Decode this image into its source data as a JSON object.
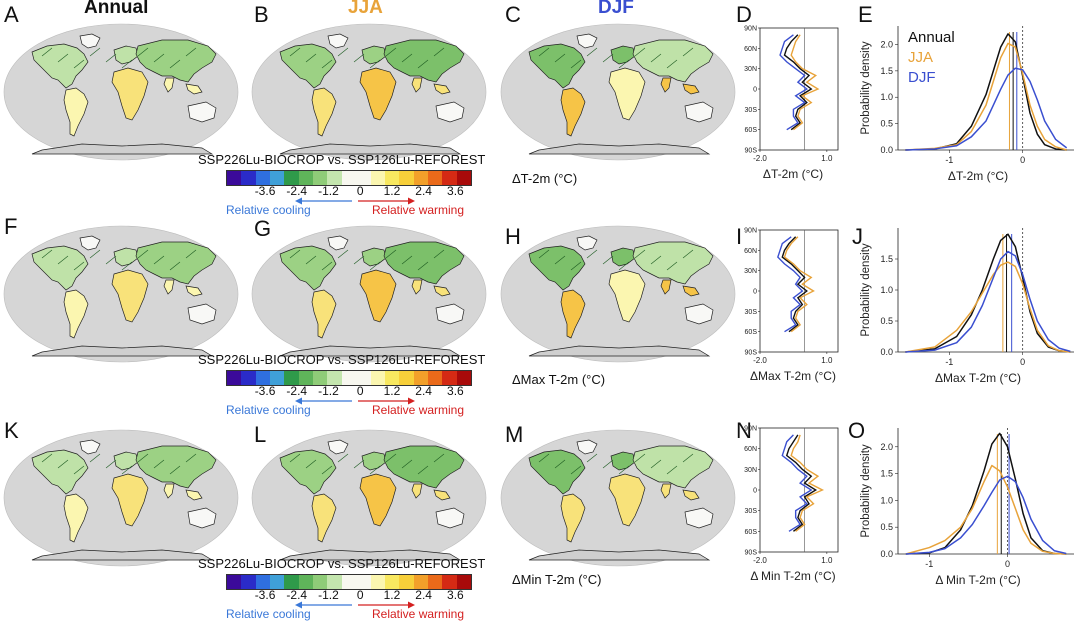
{
  "columns": {
    "annual": "Annual",
    "jja": "JJA",
    "djf": "DJF"
  },
  "colors": {
    "annual": "#111111",
    "jja": "#e8a33a",
    "djf": "#3a4fd0",
    "cooling": "#3a78d8",
    "warming": "#d42020",
    "land": "#f8f8f6",
    "ocean": "#d6d6d6"
  },
  "rows": [
    {
      "letters": [
        "A",
        "B",
        "C",
        "D",
        "E"
      ],
      "var_label": "ΔT-2m (°C)",
      "legend": {
        "title": "SSP226Lu-BIOCROP vs. SSP126Lu-REFOREST",
        "ticks": [
          "-3.6",
          "-2.4",
          "-1.2",
          "0",
          "1.2",
          "2.4",
          "3.6"
        ],
        "cooling": "Relative cooling",
        "warming": "Relative warming"
      },
      "lat_plot": {
        "xlabel": "ΔT-2m (°C)",
        "xticks": [
          "-2.0",
          "1.0"
        ],
        "yticks": [
          "90N",
          "60N",
          "30N",
          "0",
          "30S",
          "60S",
          "90S"
        ]
      },
      "density": {
        "ylabel": "Probability density",
        "xlabel": "ΔT-2m (°C)",
        "xticks": [
          "-1",
          "0"
        ],
        "yticks": [
          "0.0",
          "0.5",
          "1.0",
          "1.5",
          "2.0"
        ],
        "legend": [
          "Annual",
          "JJA",
          "DJF"
        ]
      }
    },
    {
      "letters": [
        "F",
        "G",
        "H",
        "I",
        "J"
      ],
      "var_label": "ΔMax T-2m (°C)",
      "legend": {
        "title": "SSP226Lu-BIOCROP vs. SSP126Lu-REFOREST",
        "ticks": [
          "-3.6",
          "-2.4",
          "-1.2",
          "0",
          "1.2",
          "2.4",
          "3.6"
        ],
        "cooling": "Relative cooling",
        "warming": "Relative warming"
      },
      "lat_plot": {
        "xlabel": "ΔMax T-2m (°C)",
        "xticks": [
          "-2.0",
          "1.0"
        ],
        "yticks": [
          "90N",
          "60N",
          "30N",
          "0",
          "30S",
          "60S",
          "90S"
        ]
      },
      "density": {
        "ylabel": "Probability density",
        "xlabel": "ΔMax T-2m (°C)",
        "xticks": [
          "-1",
          "0"
        ],
        "yticks": [
          "0.0",
          "0.5",
          "1.0",
          "1.5"
        ],
        "legend": []
      }
    },
    {
      "letters": [
        "K",
        "L",
        "M",
        "N",
        "O"
      ],
      "var_label": "ΔMin T-2m (°C)",
      "legend": {
        "title": "SSP226Lu-BIOCROP vs. SSP126Lu-REFOREST",
        "ticks": [
          "-3.6",
          "-2.4",
          "-1.2",
          "0",
          "1.2",
          "2.4",
          "3.6"
        ],
        "cooling": "Relative cooling",
        "warming": "Relative warming"
      },
      "lat_plot": {
        "xlabel": "Δ Min T-2m (°C)",
        "xticks": [
          "-2.0",
          "1.0"
        ],
        "yticks": [
          "90N",
          "60N",
          "30N",
          "0",
          "30S",
          "60S",
          "90S"
        ]
      },
      "density": {
        "ylabel": "Probability density",
        "xlabel": "Δ Min T-2m (°C)",
        "xticks": [
          "-1",
          "0"
        ],
        "yticks": [
          "0.0",
          "0.5",
          "1.0",
          "1.5",
          "2.0"
        ],
        "legend": []
      }
    }
  ],
  "colorbar_colors": [
    "#3b0a9a",
    "#2a2bc8",
    "#2f6fe0",
    "#3fa0d8",
    "#2f9a4a",
    "#5fb45a",
    "#8fcc78",
    "#c4e6ae",
    "#f8f8f0",
    "#f8f8f0",
    "#fbf6b0",
    "#f8e860",
    "#f7cf3a",
    "#f2a02a",
    "#ea6a1a",
    "#d42a14",
    "#a80a0a"
  ],
  "chart_data": [
    {
      "type": "line",
      "panel": "D",
      "xlabel": "ΔT-2m (°C)",
      "xlim": [
        -2.0,
        1.5
      ],
      "ylim": [
        -90,
        90
      ],
      "y": [
        80,
        70,
        60,
        50,
        40,
        30,
        20,
        10,
        0,
        -10,
        -20,
        -30,
        -40,
        -50,
        -60
      ],
      "series": [
        {
          "name": "Annual",
          "values": [
            -0.3,
            -0.6,
            -0.8,
            -0.9,
            -0.5,
            -0.2,
            0.2,
            -0.1,
            0.3,
            -0.2,
            0.1,
            -0.3,
            -0.4,
            -0.2,
            -0.6
          ]
        },
        {
          "name": "JJA",
          "values": [
            -0.2,
            -0.4,
            -0.5,
            -0.6,
            -0.4,
            -0.1,
            0.5,
            0.1,
            0.6,
            -0.1,
            0.3,
            -0.2,
            -0.3,
            -0.1,
            -0.5
          ]
        },
        {
          "name": "DJF",
          "values": [
            -0.5,
            -0.9,
            -1.0,
            -1.1,
            -0.8,
            -0.4,
            0.0,
            -0.3,
            0.1,
            -0.4,
            0.0,
            -0.5,
            -0.5,
            -0.3,
            -0.8
          ]
        }
      ]
    },
    {
      "type": "line",
      "panel": "E",
      "xlabel": "ΔT-2m (°C)",
      "ylabel": "Probability density",
      "xlim": [
        -1.7,
        0.7
      ],
      "ylim": [
        0,
        2.35
      ],
      "x": [
        -1.6,
        -1.2,
        -0.9,
        -0.7,
        -0.5,
        -0.4,
        -0.3,
        -0.2,
        -0.1,
        0.0,
        0.1,
        0.2,
        0.3,
        0.45,
        0.6
      ],
      "vlines": {
        "Annual": -0.13,
        "JJA": -0.18,
        "DJF": -0.08
      },
      "series": [
        {
          "name": "Annual",
          "values": [
            0.0,
            0.02,
            0.12,
            0.45,
            1.05,
            1.5,
            1.95,
            2.2,
            2.05,
            1.4,
            0.7,
            0.3,
            0.1,
            0.02,
            0.0
          ]
        },
        {
          "name": "JJA",
          "values": [
            0.0,
            0.03,
            0.1,
            0.35,
            0.85,
            1.3,
            1.75,
            2.02,
            1.95,
            1.45,
            0.85,
            0.45,
            0.2,
            0.06,
            0.0
          ]
        },
        {
          "name": "DJF",
          "values": [
            0.0,
            0.02,
            0.08,
            0.25,
            0.55,
            0.85,
            1.15,
            1.42,
            1.55,
            1.52,
            1.3,
            0.95,
            0.55,
            0.2,
            0.04
          ]
        }
      ]
    },
    {
      "type": "line",
      "panel": "I",
      "xlabel": "ΔMax T-2m (°C)",
      "xlim": [
        -2.0,
        1.5
      ],
      "ylim": [
        -90,
        90
      ],
      "y": [
        80,
        70,
        60,
        50,
        40,
        30,
        20,
        10,
        0,
        -10,
        -20,
        -30,
        -40,
        -50,
        -60
      ],
      "series": [
        {
          "name": "Annual",
          "values": [
            -0.4,
            -0.7,
            -0.9,
            -1.0,
            -0.6,
            -0.3,
            0.0,
            -0.3,
            0.1,
            -0.3,
            -0.1,
            -0.4,
            -0.5,
            -0.3,
            -0.7
          ]
        },
        {
          "name": "JJA",
          "values": [
            -0.3,
            -0.6,
            -0.8,
            -0.9,
            -0.5,
            -0.2,
            0.3,
            -0.1,
            0.4,
            -0.2,
            0.1,
            -0.3,
            -0.4,
            -0.2,
            -0.6
          ]
        },
        {
          "name": "DJF",
          "values": [
            -0.6,
            -1.0,
            -1.1,
            -1.2,
            -0.9,
            -0.5,
            -0.2,
            -0.4,
            -0.1,
            -0.5,
            -0.2,
            -0.6,
            -0.6,
            -0.4,
            -0.9
          ]
        }
      ]
    },
    {
      "type": "line",
      "panel": "J",
      "xlabel": "ΔMax T-2m (°C)",
      "ylabel": "Probability density",
      "xlim": [
        -1.7,
        0.7
      ],
      "ylim": [
        0,
        2.0
      ],
      "x": [
        -1.6,
        -1.2,
        -0.9,
        -0.7,
        -0.55,
        -0.4,
        -0.3,
        -0.2,
        -0.1,
        0.0,
        0.1,
        0.2,
        0.35,
        0.5,
        0.65
      ],
      "vlines": {
        "Annual": -0.22,
        "JJA": -0.27,
        "DJF": -0.15
      },
      "series": [
        {
          "name": "Annual",
          "values": [
            0.0,
            0.05,
            0.25,
            0.6,
            1.0,
            1.5,
            1.8,
            1.9,
            1.7,
            1.2,
            0.65,
            0.3,
            0.08,
            0.02,
            0.0
          ]
        },
        {
          "name": "JJA",
          "values": [
            0.0,
            0.08,
            0.35,
            0.65,
            0.95,
            1.25,
            1.4,
            1.45,
            1.38,
            1.1,
            0.7,
            0.35,
            0.1,
            0.02,
            0.0
          ]
        },
        {
          "name": "DJF",
          "values": [
            0.0,
            0.03,
            0.15,
            0.4,
            0.75,
            1.2,
            1.5,
            1.62,
            1.55,
            1.25,
            0.85,
            0.5,
            0.2,
            0.06,
            0.01
          ]
        }
      ]
    },
    {
      "type": "line",
      "panel": "N",
      "xlabel": "Δ Min T-2m (°C)",
      "xlim": [
        -2.0,
        1.5
      ],
      "ylim": [
        -90,
        90
      ],
      "y": [
        80,
        70,
        60,
        50,
        40,
        30,
        20,
        10,
        0,
        -10,
        -20,
        -30,
        -40,
        -50,
        -60
      ],
      "series": [
        {
          "name": "Annual",
          "values": [
            -0.3,
            -0.5,
            -0.7,
            -0.8,
            -0.4,
            -0.1,
            0.3,
            0.0,
            0.5,
            0.0,
            0.2,
            -0.2,
            -0.3,
            -0.1,
            -0.5
          ]
        },
        {
          "name": "JJA",
          "values": [
            -0.2,
            -0.3,
            -0.5,
            -0.6,
            -0.2,
            0.1,
            0.6,
            0.2,
            0.8,
            0.1,
            0.4,
            -0.1,
            -0.2,
            0.0,
            -0.4
          ]
        },
        {
          "name": "DJF",
          "values": [
            -0.5,
            -0.8,
            -0.9,
            -1.0,
            -0.6,
            -0.3,
            0.1,
            -0.2,
            0.3,
            -0.2,
            0.1,
            -0.4,
            -0.4,
            -0.2,
            -0.7
          ]
        }
      ]
    },
    {
      "type": "line",
      "panel": "O",
      "xlabel": "Δ Min T-2m (°C)",
      "ylabel": "Probability density",
      "xlim": [
        -1.4,
        0.85
      ],
      "ylim": [
        0,
        2.35
      ],
      "x": [
        -1.3,
        -1.0,
        -0.8,
        -0.6,
        -0.45,
        -0.3,
        -0.2,
        -0.1,
        0.0,
        0.1,
        0.2,
        0.3,
        0.45,
        0.6,
        0.75
      ],
      "vlines": {
        "Annual": -0.08,
        "JJA": -0.13,
        "DJF": 0.02
      },
      "series": [
        {
          "name": "Annual",
          "values": [
            0.0,
            0.02,
            0.12,
            0.45,
            0.9,
            1.55,
            2.05,
            2.25,
            2.0,
            1.4,
            0.75,
            0.3,
            0.06,
            0.01,
            0.0
          ]
        },
        {
          "name": "JJA",
          "values": [
            0.0,
            0.12,
            0.25,
            0.5,
            0.85,
            1.35,
            1.65,
            1.55,
            1.25,
            0.85,
            0.45,
            0.2,
            0.05,
            0.01,
            0.0
          ]
        },
        {
          "name": "DJF",
          "values": [
            0.0,
            0.03,
            0.1,
            0.3,
            0.55,
            0.9,
            1.15,
            1.38,
            1.45,
            1.35,
            1.05,
            0.65,
            0.25,
            0.06,
            0.01
          ]
        }
      ]
    }
  ]
}
